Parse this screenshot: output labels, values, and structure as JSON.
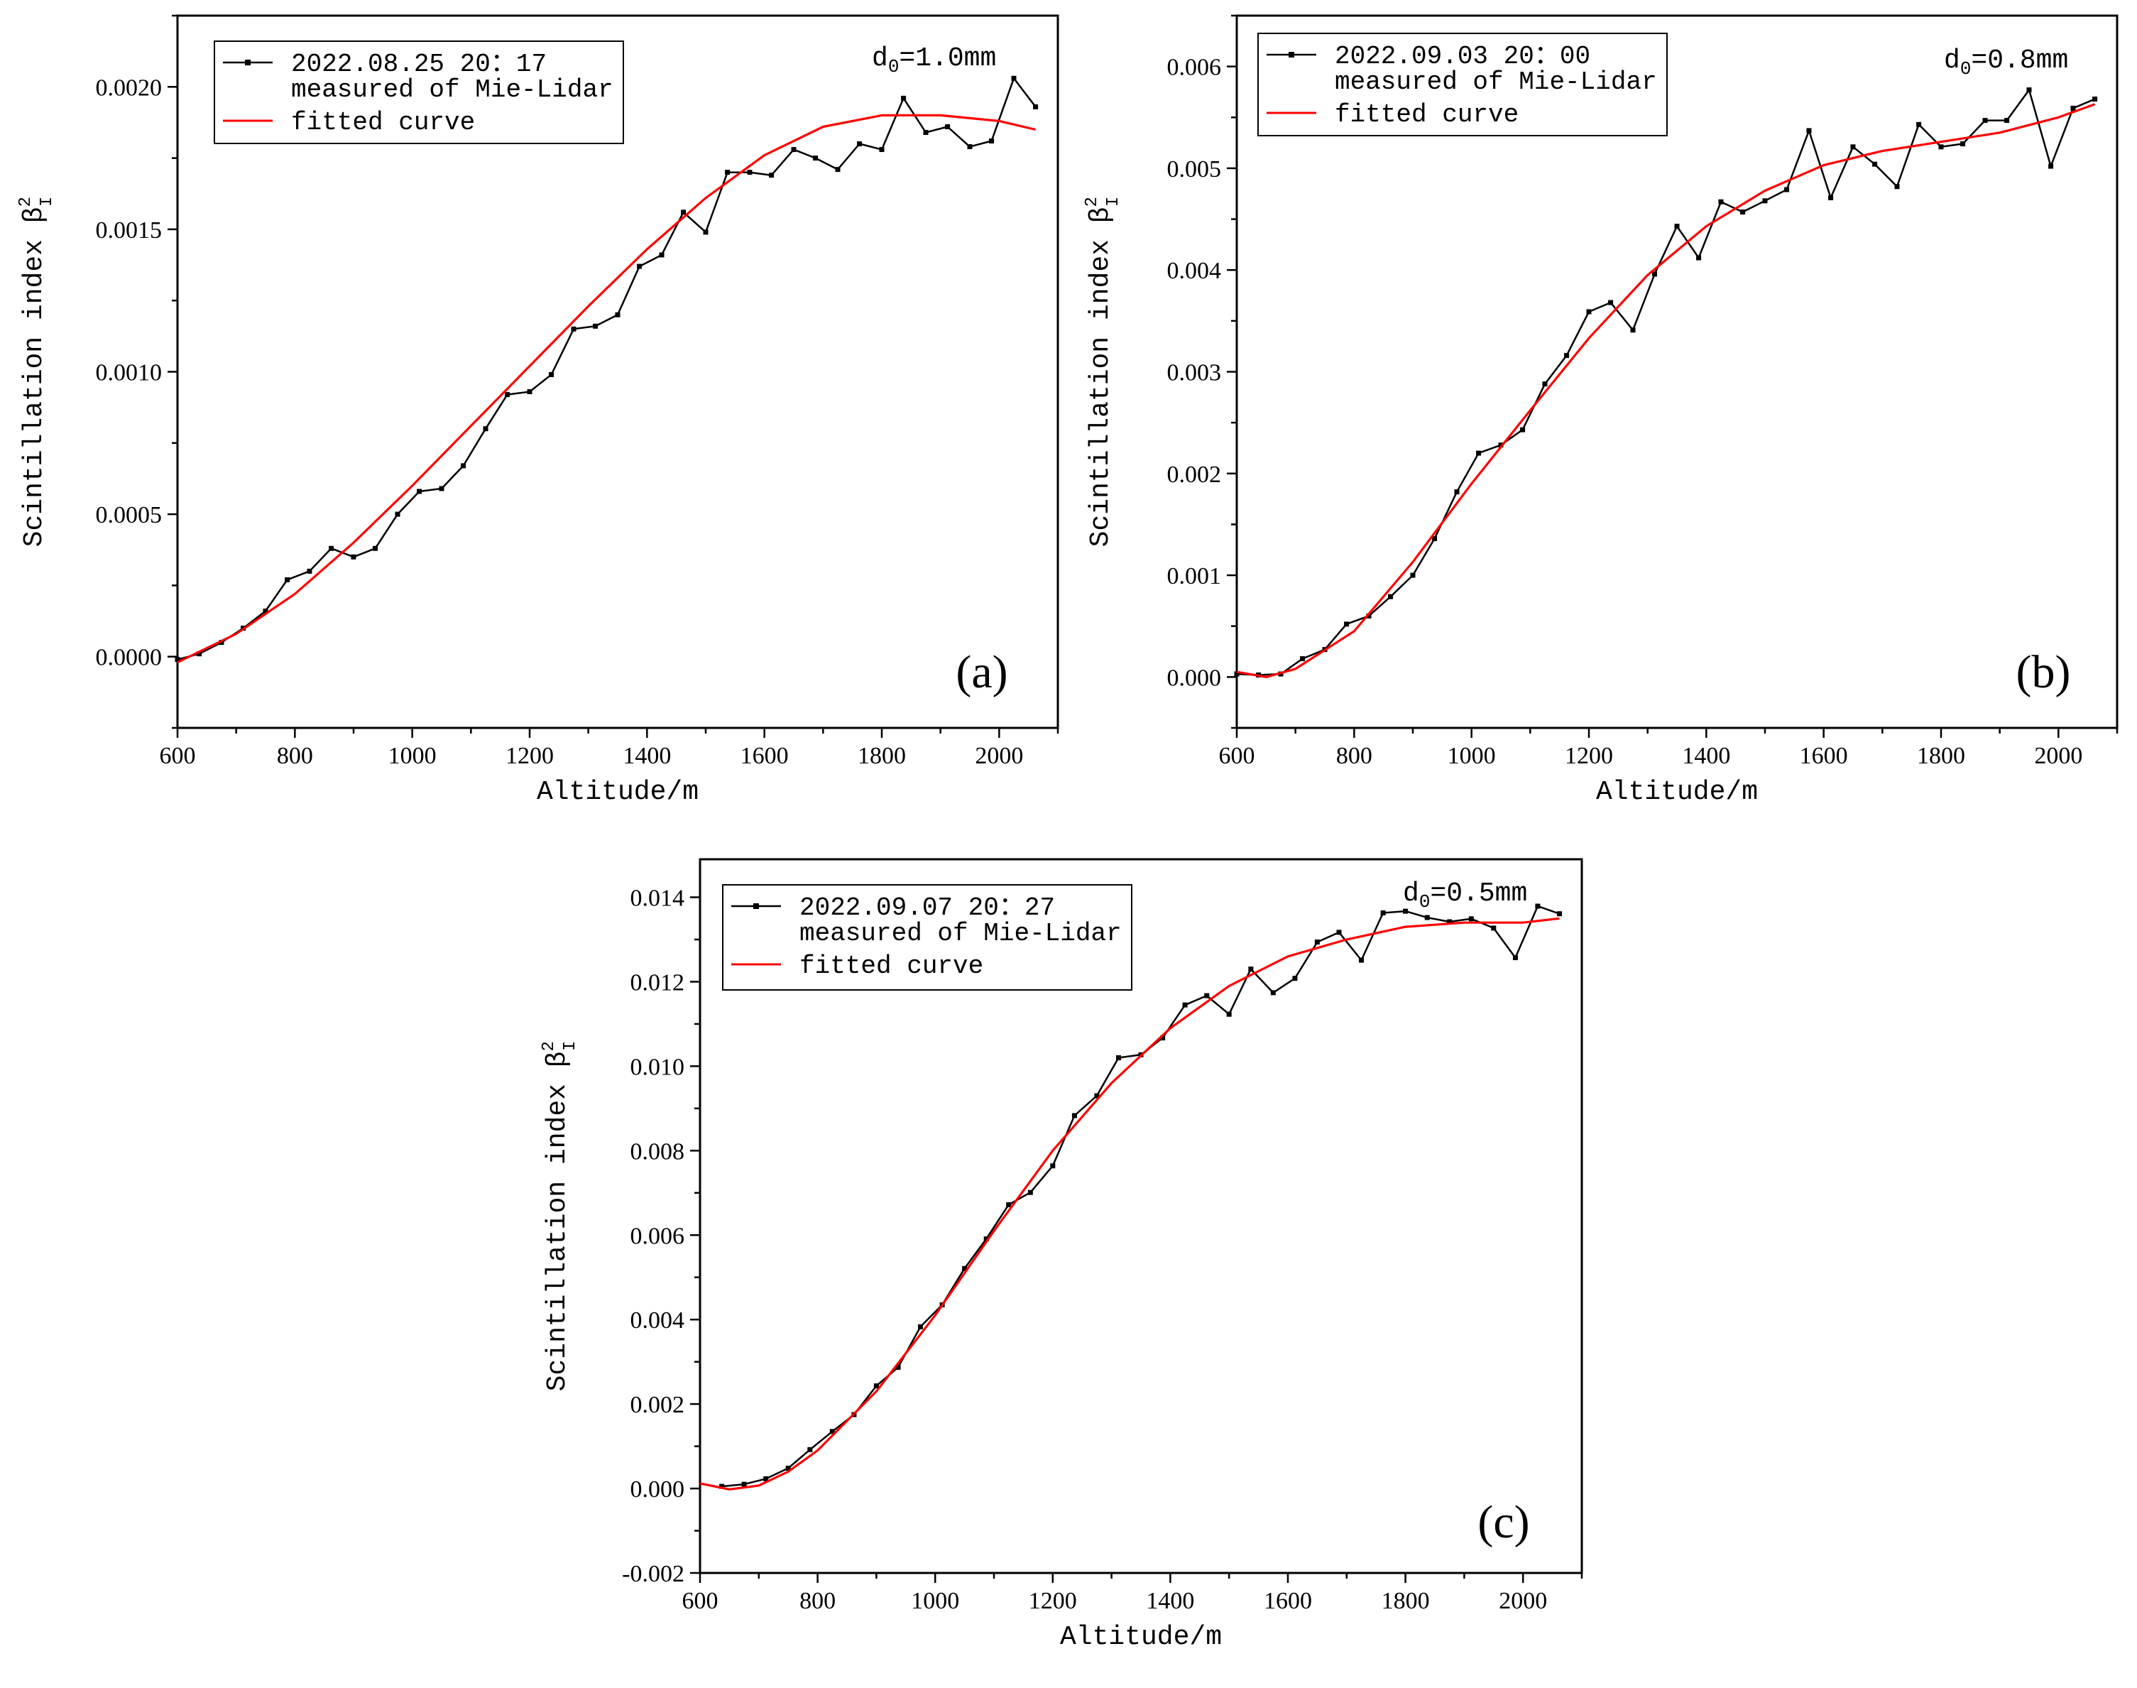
{
  "chart_data": [
    {
      "type": "line",
      "panel_label": "(a)",
      "annotation": {
        "text": "d",
        "sub": "0",
        "rest": "=1.0mm"
      },
      "xlabel": "Altitude/m",
      "ylabel": {
        "text": "Scintillation index  β",
        "sup": "2",
        "sub": "I"
      },
      "xlim": [
        600,
        2100
      ],
      "ylim": [
        -0.00025,
        0.00225
      ],
      "xticks": [
        600,
        800,
        1000,
        1200,
        1400,
        1600,
        1800,
        2000
      ],
      "yticks": [
        0,
        0.0005,
        0.001,
        0.0015,
        0.002
      ],
      "ytick_labels": [
        "0.0000",
        "0.0005",
        "0.0010",
        "0.0015",
        "0.0020"
      ],
      "legend": [
        "2022.08.25 20：17",
        "measured of Mie-Lidar",
        "fitted curve"
      ],
      "series": [
        {
          "name": "measured of Mie-Lidar",
          "color": "#000000",
          "x": [
            600,
            637,
            675,
            712,
            750,
            787,
            825,
            862,
            900,
            937,
            975,
            1012,
            1050,
            1087,
            1125,
            1162,
            1200,
            1237,
            1275,
            1312,
            1350,
            1387,
            1425,
            1462,
            1500,
            1537,
            1575,
            1612,
            1650,
            1687,
            1725,
            1762,
            1800,
            1837,
            1875,
            1912,
            1950,
            1987,
            2025,
            2062
          ],
          "y": [
            -1e-05,
            1e-05,
            5e-05,
            0.0001,
            0.00016,
            0.00027,
            0.0003,
            0.00038,
            0.00035,
            0.00038,
            0.0005,
            0.00058,
            0.00059,
            0.00067,
            0.0008,
            0.00092,
            0.00093,
            0.00099,
            0.00115,
            0.00116,
            0.0012,
            0.00137,
            0.00141,
            0.00156,
            0.00149,
            0.0017,
            0.0017,
            0.00169,
            0.00178,
            0.00175,
            0.00171,
            0.0018,
            0.00178,
            0.00196,
            0.00184,
            0.00186,
            0.00179,
            0.00181,
            0.00203,
            0.00193
          ]
        },
        {
          "name": "fitted curve",
          "color": "#ff0000",
          "x": [
            600,
            700,
            800,
            900,
            1000,
            1100,
            1200,
            1300,
            1400,
            1500,
            1600,
            1700,
            1800,
            1900,
            1950,
            2000,
            2062
          ],
          "y": [
            -2e-05,
            8e-05,
            0.00022,
            0.0004,
            0.0006,
            0.00081,
            0.00102,
            0.00123,
            0.00143,
            0.00161,
            0.00176,
            0.00186,
            0.0019,
            0.0019,
            0.00189,
            0.00188,
            0.00185
          ]
        }
      ]
    },
    {
      "type": "line",
      "panel_label": "(b)",
      "annotation": {
        "text": "d",
        "sub": "0",
        "rest": "=0.8mm"
      },
      "xlabel": "Altitude/m",
      "ylabel": {
        "text": "Scintillation index  β",
        "sup": "2",
        "sub": "I"
      },
      "xlim": [
        600,
        2100
      ],
      "ylim": [
        -0.0005,
        0.0065
      ],
      "xticks": [
        600,
        800,
        1000,
        1200,
        1400,
        1600,
        1800,
        2000
      ],
      "yticks": [
        0,
        0.001,
        0.002,
        0.003,
        0.004,
        0.005,
        0.006
      ],
      "ytick_labels": [
        "0.000",
        "0.001",
        "0.002",
        "0.003",
        "0.004",
        "0.005",
        "0.006"
      ],
      "legend": [
        "2022.09.03 20：00",
        "measured of Mie-Lidar",
        "fitted curve"
      ],
      "series": [
        {
          "name": "measured of Mie-Lidar",
          "color": "#000000",
          "x": [
            600,
            637,
            675,
            712,
            750,
            787,
            825,
            862,
            900,
            937,
            975,
            1012,
            1050,
            1087,
            1125,
            1162,
            1200,
            1237,
            1275,
            1312,
            1350,
            1387,
            1425,
            1462,
            1500,
            1537,
            1575,
            1612,
            1650,
            1687,
            1725,
            1762,
            1800,
            1837,
            1875,
            1912,
            1950,
            1987,
            2025,
            2062
          ],
          "y": [
            3e-05,
            2e-05,
            3e-05,
            0.00018,
            0.00027,
            0.00052,
            0.0006,
            0.00079,
            0.001,
            0.00136,
            0.00182,
            0.0022,
            0.00228,
            0.00243,
            0.00288,
            0.00316,
            0.00359,
            0.00368,
            0.00341,
            0.00396,
            0.00443,
            0.00412,
            0.00467,
            0.00457,
            0.00468,
            0.00479,
            0.00537,
            0.00471,
            0.00521,
            0.00504,
            0.00482,
            0.00543,
            0.00521,
            0.00524,
            0.00547,
            0.00547,
            0.00577,
            0.00502,
            0.00559,
            0.00568
          ]
        },
        {
          "name": "fitted curve",
          "color": "#ff0000",
          "x": [
            600,
            650,
            700,
            800,
            900,
            1000,
            1100,
            1200,
            1300,
            1400,
            1500,
            1600,
            1700,
            1800,
            1900,
            2000,
            2062
          ],
          "y": [
            5e-05,
            0.0,
            8e-05,
            0.00045,
            0.00113,
            0.0019,
            0.00262,
            0.00333,
            0.00395,
            0.00443,
            0.00478,
            0.00503,
            0.00517,
            0.00526,
            0.00535,
            0.0055,
            0.00563
          ]
        }
      ]
    },
    {
      "type": "line",
      "panel_label": "(c)",
      "annotation": {
        "text": "d",
        "sub": "0",
        "rest": "=0.5mm"
      },
      "xlabel": "Altitude/m",
      "ylabel": {
        "text": "Scintillation index  β",
        "sup": "2",
        "sub": "I"
      },
      "xlim": [
        600,
        2100
      ],
      "ylim": [
        -0.002,
        0.0149
      ],
      "xticks": [
        600,
        800,
        1000,
        1200,
        1400,
        1600,
        1800,
        2000
      ],
      "yticks": [
        -0.002,
        0,
        0.002,
        0.004,
        0.006,
        0.008,
        0.01,
        0.012,
        0.014
      ],
      "ytick_labels": [
        "-0.002",
        "0.000",
        "0.002",
        "0.004",
        "0.006",
        "0.008",
        "0.010",
        "0.012",
        "0.014"
      ],
      "legend": [
        "2022.09.07 20：27",
        "measured of Mie-Lidar",
        "fitted curve"
      ],
      "series": [
        {
          "name": "measured of Mie-Lidar",
          "color": "#000000",
          "x": [
            637,
            675,
            712,
            750,
            787,
            825,
            862,
            900,
            937,
            975,
            1012,
            1050,
            1087,
            1125,
            1162,
            1200,
            1237,
            1275,
            1312,
            1350,
            1387,
            1425,
            1462,
            1500,
            1537,
            1575,
            1612,
            1650,
            1687,
            1725,
            1762,
            1800,
            1837,
            1875,
            1912,
            1950,
            1987,
            2025,
            2062
          ],
          "y": [
            5e-05,
            0.0001,
            0.00023,
            0.00048,
            0.00092,
            0.00135,
            0.00175,
            0.00243,
            0.00287,
            0.00383,
            0.00435,
            0.00521,
            0.00591,
            0.00672,
            0.00701,
            0.00764,
            0.00883,
            0.0093,
            0.0102,
            0.01027,
            0.01067,
            0.01145,
            0.01167,
            0.01123,
            0.0123,
            0.01174,
            0.01208,
            0.01294,
            0.01317,
            0.01251,
            0.01363,
            0.01367,
            0.01352,
            0.01342,
            0.01349,
            0.01327,
            0.01257,
            0.01379,
            0.01361
          ]
        },
        {
          "name": "fitted curve",
          "color": "#ff0000",
          "x": [
            600,
            650,
            700,
            750,
            800,
            900,
            1000,
            1100,
            1200,
            1300,
            1400,
            1500,
            1600,
            1700,
            1800,
            1900,
            2000,
            2062
          ],
          "y": [
            0.00012,
            -2e-05,
            7e-05,
            0.0004,
            0.0009,
            0.0023,
            0.0041,
            0.0061,
            0.008,
            0.0096,
            0.0109,
            0.0119,
            0.0126,
            0.013,
            0.0133,
            0.0134,
            0.0134,
            0.0135
          ]
        }
      ]
    }
  ]
}
